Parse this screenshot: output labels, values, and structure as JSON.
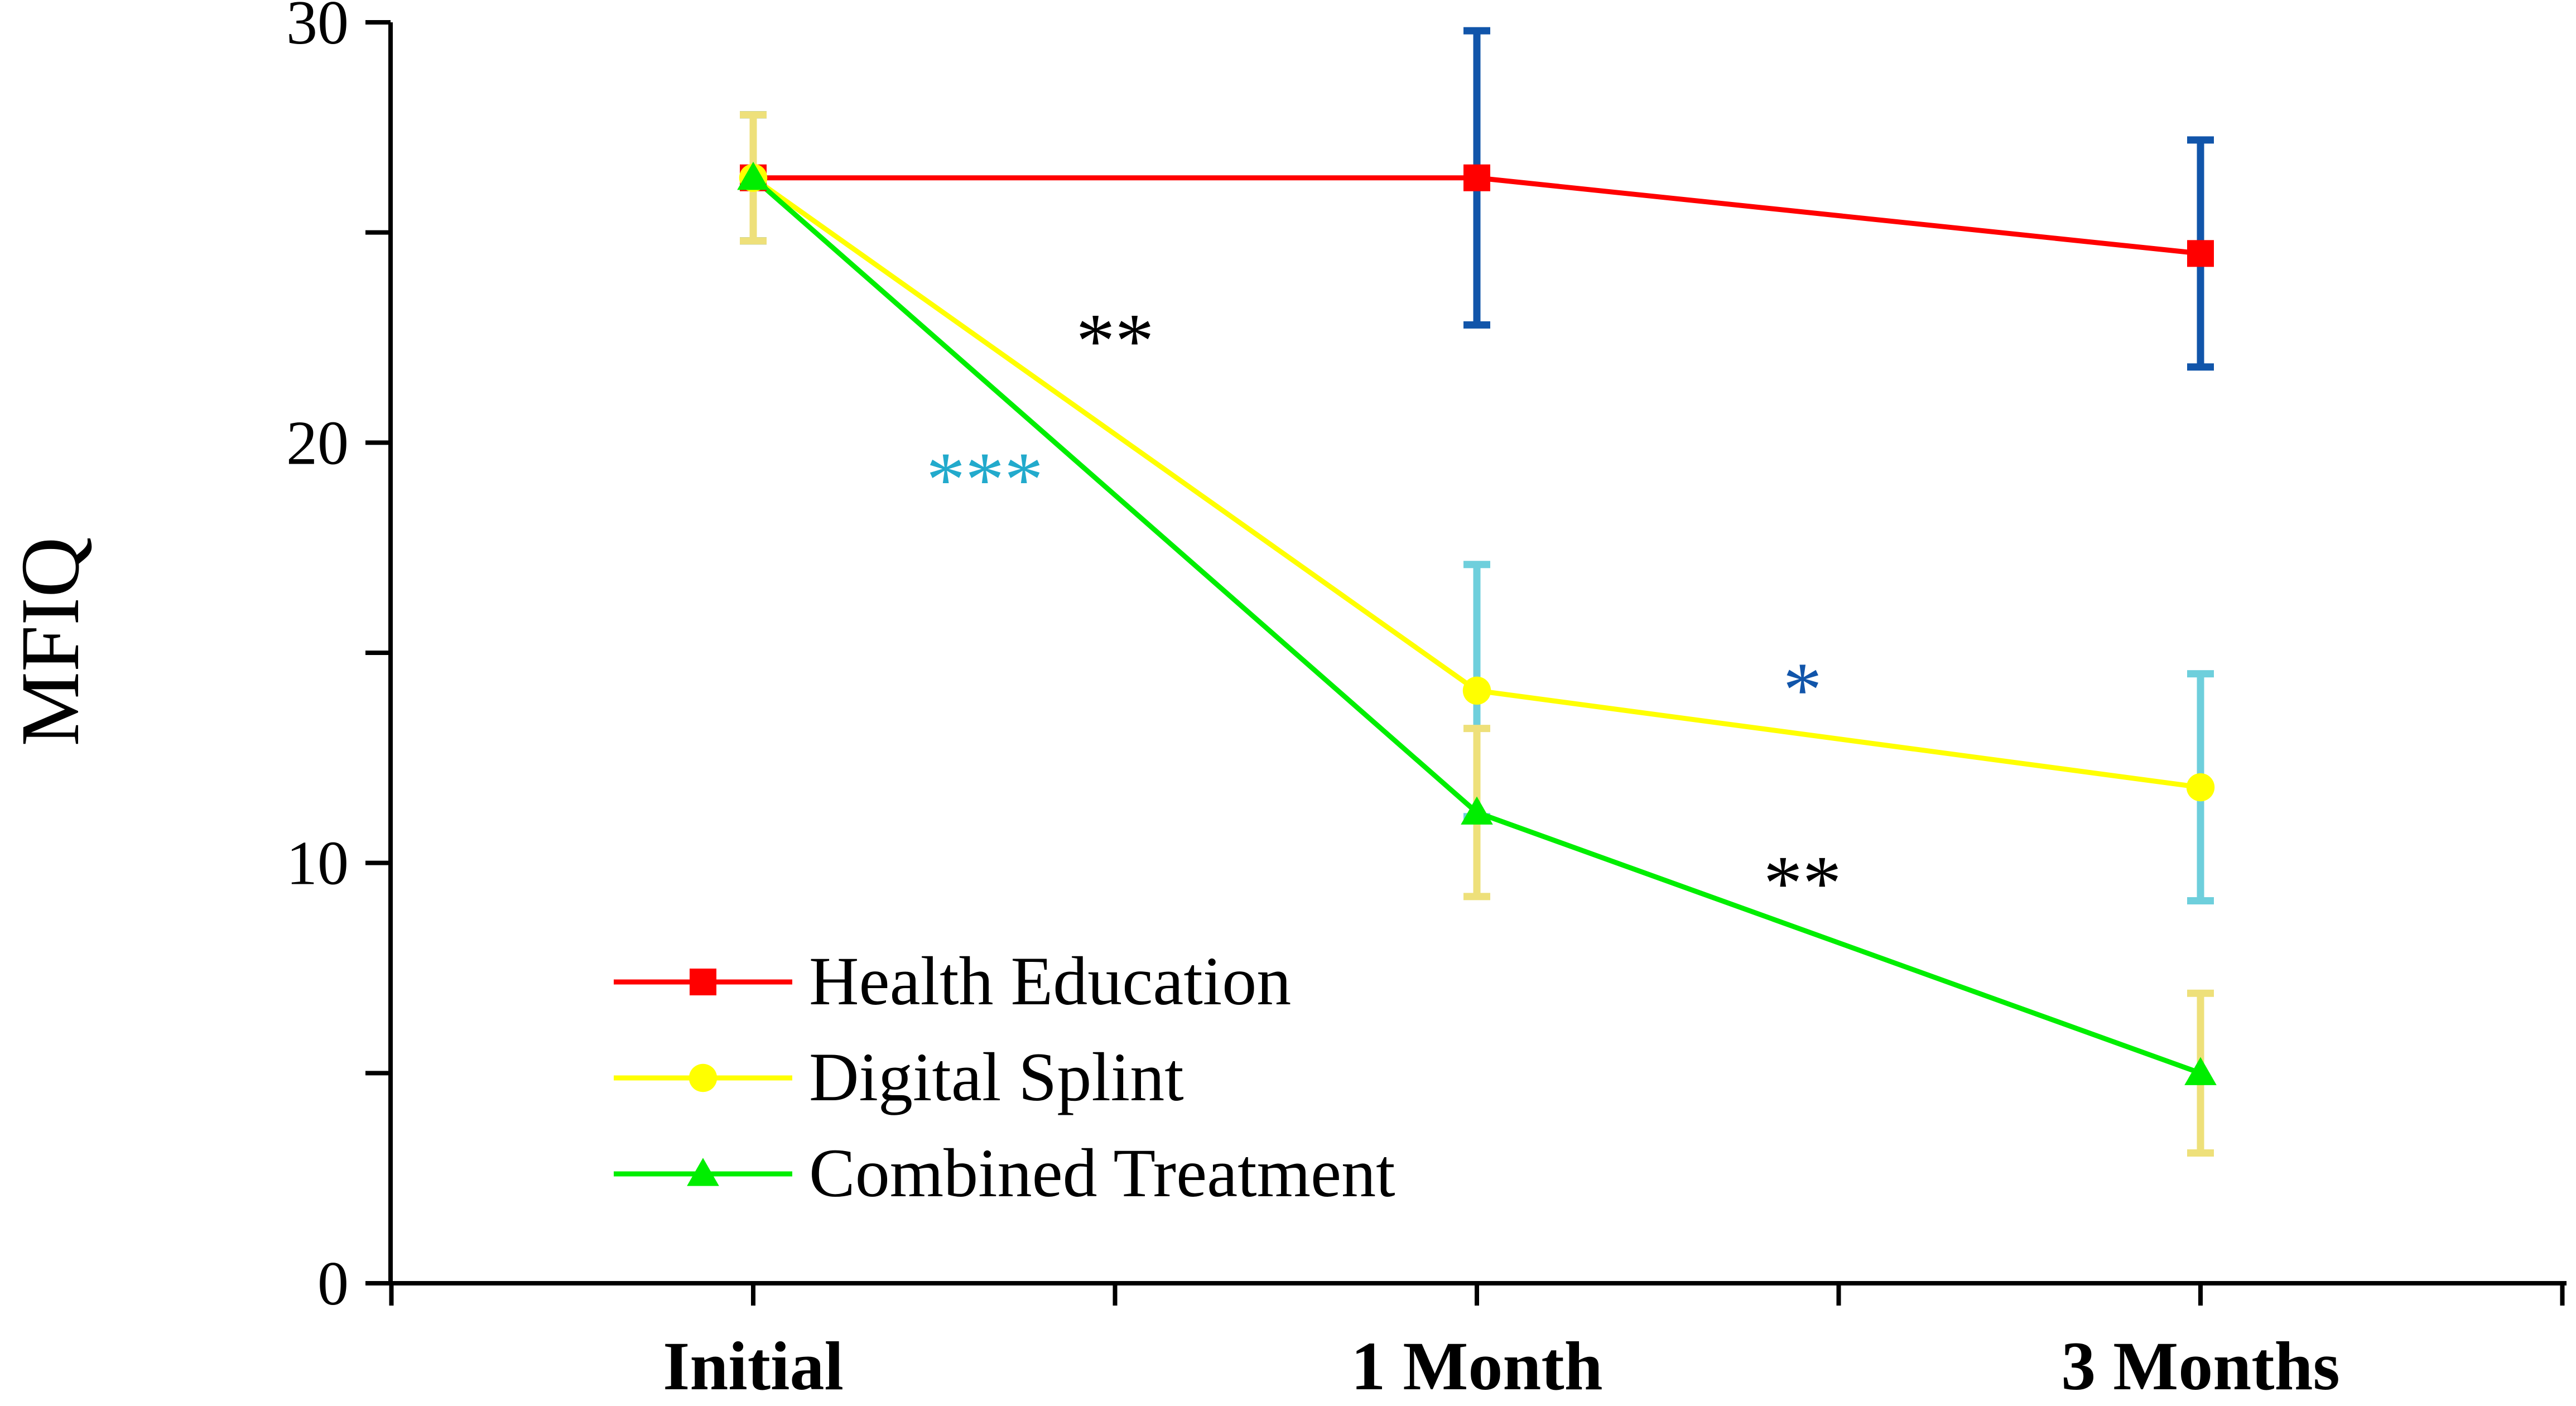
{
  "chart_data": {
    "type": "line",
    "title": "",
    "xlabel": "",
    "ylabel": "MFIQ",
    "ylim": [
      0,
      30
    ],
    "yticks": [
      0,
      10,
      20,
      30
    ],
    "categories": [
      "Initial",
      "1 Month",
      "3 Months"
    ],
    "grid": false,
    "legend_position": "bottom-left",
    "series": [
      {
        "name": "Health Education",
        "marker": "square",
        "color": "#ff0000",
        "errorbar_color": "#1155aa",
        "values": [
          26.3,
          26.3,
          24.5
        ],
        "error": [
          1.5,
          3.5,
          2.7
        ]
      },
      {
        "name": "Digital Splint",
        "marker": "circle",
        "color": "#ffff00",
        "errorbar_color": "#6ecfdc",
        "values": [
          26.3,
          14.1,
          11.8
        ],
        "error": [
          1.5,
          3.0,
          2.7
        ]
      },
      {
        "name": "Combined Treatment",
        "marker": "triangle",
        "color": "#00ee00",
        "errorbar_color": "#eee07a",
        "values": [
          26.3,
          11.2,
          5.0
        ],
        "error": [
          1.5,
          2.0,
          1.9
        ]
      }
    ],
    "annotations": [
      {
        "text": "**",
        "x": 0.5,
        "y": 21.8,
        "color": "#000000"
      },
      {
        "text": "***",
        "x": 0.32,
        "y": 18.5,
        "color": "#22aacc"
      },
      {
        "text": "*",
        "x": 1.45,
        "y": 13.5,
        "color": "#1155aa"
      },
      {
        "text": "**",
        "x": 1.45,
        "y": 8.9,
        "color": "#000000"
      }
    ]
  }
}
